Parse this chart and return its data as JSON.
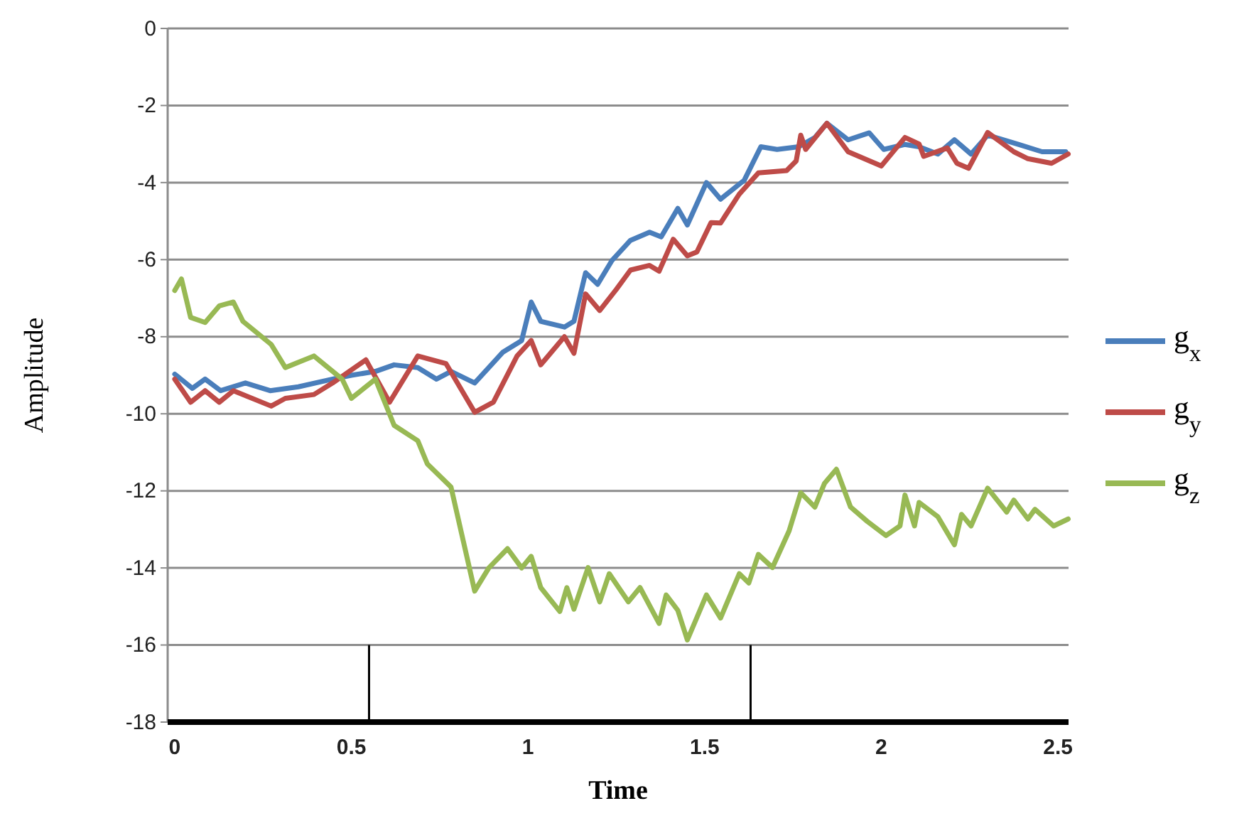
{
  "chart_data": {
    "type": "line",
    "xlabel": "Time",
    "ylabel": "Amplitude",
    "xlim": [
      -0.02,
      2.53
    ],
    "ylim": [
      -18,
      0
    ],
    "xticks": [
      0,
      0.5,
      1,
      1.5,
      2,
      2.5
    ],
    "yticks": [
      -18,
      -16,
      -14,
      -12,
      -10,
      -8,
      -6,
      -4,
      -2,
      0
    ],
    "grid": "y",
    "legend": "right",
    "marker": "none",
    "line_style": "solid",
    "ref_lines": [
      {
        "axis": "x",
        "value": 0.55,
        "color": "#000000"
      },
      {
        "axis": "x",
        "value": 1.63,
        "color": "#000000"
      }
    ],
    "series": [
      {
        "name": "g$_{x}$",
        "color": "#4a7ebb",
        "x": [
          0,
          0.05,
          0.086,
          0.13,
          0.2,
          0.27,
          0.35,
          0.447,
          0.5,
          0.568,
          0.621,
          0.688,
          0.741,
          0.782,
          0.849,
          0.929,
          0.982,
          1.009,
          1.036,
          1.103,
          1.13,
          1.163,
          1.197,
          1.237,
          1.29,
          1.344,
          1.377,
          1.424,
          1.451,
          1.505,
          1.545,
          1.612,
          1.659,
          1.705,
          1.766,
          1.812,
          1.846,
          1.906,
          1.966,
          2.007,
          2.067,
          2.107,
          2.16,
          2.207,
          2.254,
          2.301,
          2.388,
          2.455,
          2.522
        ],
        "values": [
          -8.97,
          -9.34,
          -9.1,
          -9.4,
          -9.2,
          -9.4,
          -9.3,
          -9.1,
          -9.0,
          -8.9,
          -8.73,
          -8.8,
          -9.1,
          -8.9,
          -9.2,
          -8.4,
          -8.1,
          -7.1,
          -7.6,
          -7.75,
          -7.6,
          -6.34,
          -6.64,
          -6.03,
          -5.5,
          -5.29,
          -5.41,
          -4.67,
          -5.1,
          -4.0,
          -4.43,
          -3.94,
          -3.07,
          -3.14,
          -3.07,
          -2.83,
          -2.46,
          -2.89,
          -2.71,
          -3.14,
          -3.01,
          -3.07,
          -3.26,
          -2.89,
          -3.26,
          -2.77,
          -3.01,
          -3.2,
          -3.2
        ]
      },
      {
        "name": "g$_{y}$",
        "color": "#be4b48",
        "x": [
          0,
          0.045,
          0.086,
          0.126,
          0.166,
          0.273,
          0.313,
          0.394,
          0.447,
          0.541,
          0.608,
          0.688,
          0.768,
          0.849,
          0.902,
          0.969,
          1.009,
          1.036,
          1.103,
          1.13,
          1.163,
          1.203,
          1.25,
          1.29,
          1.344,
          1.371,
          1.411,
          1.451,
          1.478,
          1.518,
          1.545,
          1.598,
          1.652,
          1.732,
          1.759,
          1.772,
          1.786,
          1.846,
          1.906,
          2.0,
          2.067,
          2.107,
          2.12,
          2.187,
          2.214,
          2.247,
          2.301,
          2.375,
          2.415,
          2.482,
          2.529
        ],
        "values": [
          -9.1,
          -9.7,
          -9.4,
          -9.7,
          -9.4,
          -9.8,
          -9.6,
          -9.5,
          -9.2,
          -8.6,
          -9.7,
          -8.5,
          -8.7,
          -9.96,
          -9.7,
          -8.5,
          -8.1,
          -8.73,
          -8.0,
          -8.43,
          -6.89,
          -7.32,
          -6.77,
          -6.27,
          -6.15,
          -6.3,
          -5.47,
          -5.9,
          -5.8,
          -5.04,
          -5.05,
          -4.3,
          -3.75,
          -3.69,
          -3.44,
          -2.77,
          -3.14,
          -2.46,
          -3.2,
          -3.57,
          -2.83,
          -3.0,
          -3.32,
          -3.1,
          -3.5,
          -3.63,
          -2.7,
          -3.2,
          -3.38,
          -3.5,
          -3.26
        ]
      },
      {
        "name": "g$_{z}$",
        "color": "#98b954",
        "x": [
          0,
          0.019,
          0.045,
          0.086,
          0.126,
          0.166,
          0.193,
          0.273,
          0.313,
          0.394,
          0.474,
          0.5,
          0.568,
          0.621,
          0.688,
          0.715,
          0.782,
          0.849,
          0.889,
          0.942,
          0.982,
          1.009,
          1.036,
          1.09,
          1.11,
          1.13,
          1.17,
          1.203,
          1.23,
          1.284,
          1.317,
          1.371,
          1.391,
          1.424,
          1.451,
          1.505,
          1.545,
          1.598,
          1.625,
          1.652,
          1.692,
          1.739,
          1.772,
          1.812,
          1.839,
          1.873,
          1.913,
          1.96,
          2.013,
          2.053,
          2.067,
          2.094,
          2.107,
          2.16,
          2.207,
          2.227,
          2.254,
          2.301,
          2.355,
          2.375,
          2.415,
          2.435,
          2.488,
          2.529
        ],
        "values": [
          -6.8,
          -6.5,
          -7.5,
          -7.63,
          -7.2,
          -7.1,
          -7.6,
          -8.2,
          -8.8,
          -8.5,
          -9.1,
          -9.6,
          -9.1,
          -10.3,
          -10.7,
          -11.3,
          -11.9,
          -14.6,
          -14.0,
          -13.5,
          -14.0,
          -13.7,
          -14.51,
          -15.13,
          -14.51,
          -15.07,
          -13.99,
          -14.88,
          -14.15,
          -14.88,
          -14.51,
          -15.44,
          -14.7,
          -15.1,
          -15.87,
          -14.7,
          -15.3,
          -14.15,
          -14.39,
          -13.65,
          -13.99,
          -13.04,
          -12.05,
          -12.42,
          -11.81,
          -11.44,
          -12.42,
          -12.79,
          -13.16,
          -12.91,
          -12.11,
          -12.91,
          -12.3,
          -12.67,
          -13.4,
          -12.61,
          -12.91,
          -11.93,
          -12.55,
          -12.24,
          -12.73,
          -12.48,
          -12.91,
          -12.73
        ]
      }
    ]
  }
}
